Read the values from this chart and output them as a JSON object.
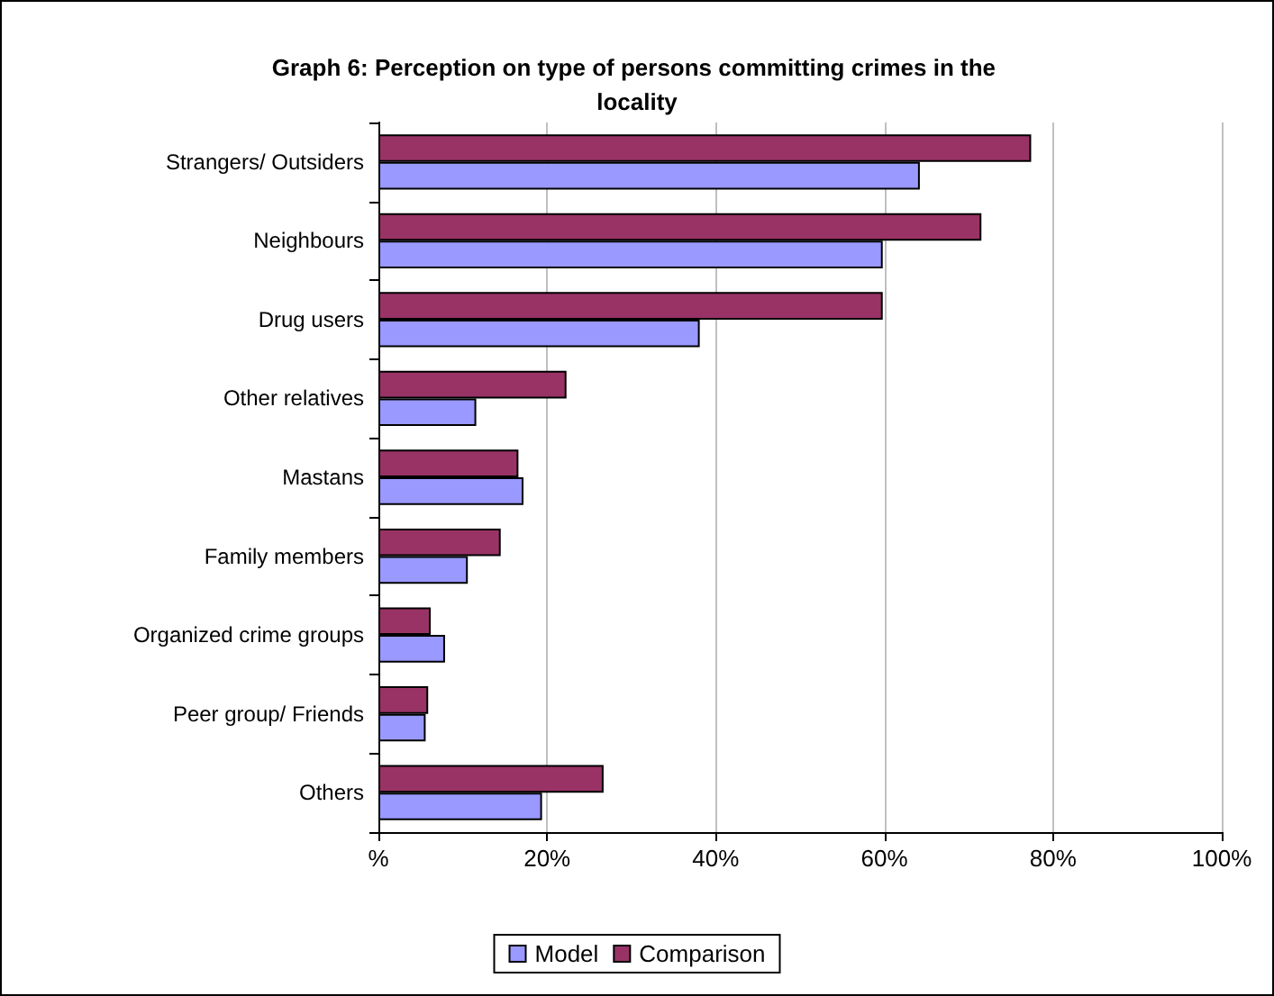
{
  "chart_data": {
    "type": "bar",
    "orientation": "horizontal",
    "title": "Graph 6: Perception on type of persons committing crimes in the locality",
    "categories": [
      "Strangers/ Outsiders",
      "Neighbours",
      "Drug users",
      "Other relatives",
      "Mastans",
      "Family members",
      "Organized crime groups",
      "Peer group/ Friends",
      "Others"
    ],
    "series": [
      {
        "name": "Model",
        "color": "#9999ff",
        "values": [
          64.2,
          59.8,
          38.1,
          11.6,
          17.2,
          10.6,
          7.9,
          5.6,
          19.4
        ]
      },
      {
        "name": "Comparison",
        "color": "#993366",
        "values": [
          77.4,
          71.5,
          59.8,
          22.3,
          16.6,
          14.5,
          6.2,
          5.9,
          26.7
        ]
      }
    ],
    "xlim": [
      0,
      100
    ],
    "xticks": [
      {
        "value": 0,
        "label": "%"
      },
      {
        "value": 20,
        "label": "20%"
      },
      {
        "value": 40,
        "label": "40%"
      },
      {
        "value": 60,
        "label": "60%"
      },
      {
        "value": 80,
        "label": "80%"
      },
      {
        "value": 100,
        "label": "100%"
      }
    ],
    "grid": "x",
    "legend": "bottom"
  }
}
